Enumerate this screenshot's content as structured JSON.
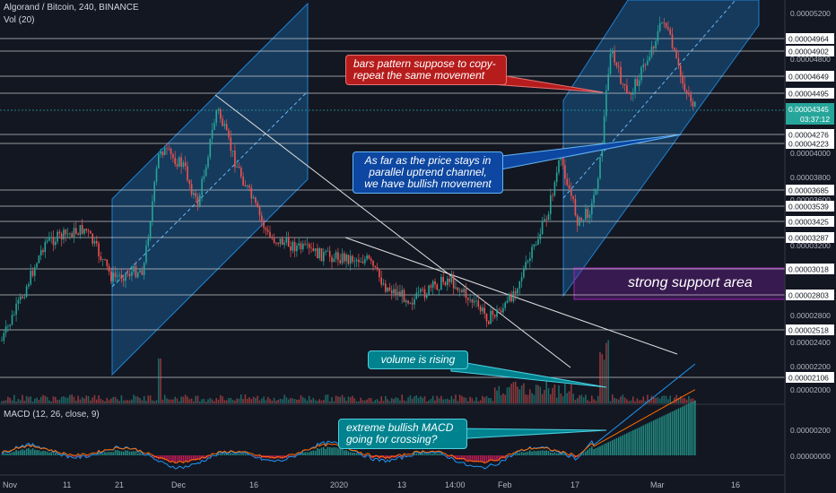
{
  "header": {
    "title": "Algorand / Bitcoin, 240, BINANCE",
    "vol": "Vol (20)",
    "macd": "MACD (12, 26, close, 9)"
  },
  "annotations": {
    "bars": "bars pattern suppose to copy-\nrepeat the same movement",
    "channel": "As far as the price stays in\nparallel uptrend channel,\nwe have bullish movement",
    "volume": "volume is rising",
    "macd": "extreme bullish MACD\ngoing for crossing?",
    "support": "strong support area"
  },
  "colors": {
    "up": "#26a69a",
    "down": "#ef5350",
    "channel": "#2196f3",
    "support": "#7b1fa2",
    "red_box": "#b71c1c",
    "blue_box": "#0d47a1",
    "teal_box": "#00838f"
  },
  "current_price": {
    "value": "0.00004345",
    "countdown": "03:37:12"
  },
  "chart_data": {
    "type": "candlestick",
    "symbol": "ALGO/BTC",
    "interval": "240",
    "exchange": "BINANCE",
    "y_axis_ticks": [
      "0.00005200",
      "0.00004800",
      "0.00004600",
      "0.00004400",
      "0.00004000",
      "0.00003800",
      "0.00003600",
      "0.00003200",
      "0.00002800",
      "0.00002600",
      "0.00002400",
      "0.00002200",
      "0.00002000"
    ],
    "level_labels": [
      "0.00004964",
      "0.00004902",
      "0.00004649",
      "0.00004495",
      "0.00004276",
      "0.00004223",
      "0.00003685",
      "0.00003539",
      "0.00003425",
      "0.00003287",
      "0.00003018",
      "0.00002803",
      "0.00002518",
      "0.00002106"
    ],
    "macd_ticks": [
      "0.00000200",
      "0.00000000"
    ],
    "x_axis_labels": [
      "Nov",
      "11",
      "21",
      "Dec",
      "16",
      "2020",
      "13",
      "14:00",
      "Feb",
      "17",
      "Mar",
      "16"
    ],
    "price_path": [
      [
        "Nov",
        2.32e-05
      ],
      [
        "6",
        2.7e-05
      ],
      [
        "11",
        3.15e-05
      ],
      [
        "16",
        3.3e-05
      ],
      [
        "21",
        3e-05
      ],
      [
        "26",
        3.1e-05
      ],
      [
        "Dec",
        3.9e-05
      ],
      [
        "6",
        3.8e-05
      ],
      [
        "11",
        4e-05
      ],
      [
        "16",
        3.4e-05
      ],
      [
        "21",
        3.3e-05
      ],
      [
        "26",
        3.2e-05
      ],
      [
        "2020",
        3e-05
      ],
      [
        "6",
        2.9e-05
      ],
      [
        "13",
        2.8e-05
      ],
      [
        "18",
        2.95e-05
      ],
      [
        "14:00",
        2.8e-05
      ],
      [
        "Feb",
        2.7e-05
      ],
      [
        "6",
        3e-05
      ],
      [
        "11",
        3.5e-05
      ],
      [
        "17",
        3.2e-05
      ],
      [
        "20",
        4e-05
      ],
      [
        "23",
        4.8e-05
      ],
      [
        "Mar",
        4.8e-05
      ],
      [
        "5",
        4.5e-05
      ]
    ]
  }
}
